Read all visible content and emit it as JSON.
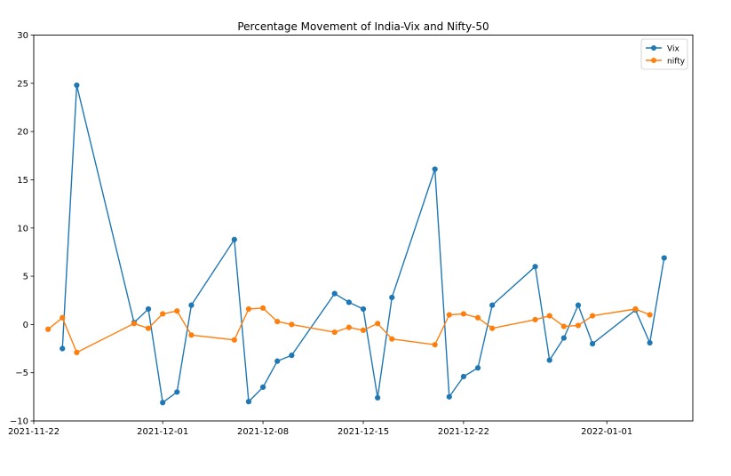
{
  "chart_data": {
    "type": "line",
    "title": "Percentage Movement of India-Vix and Nifty-50",
    "xlabel": "",
    "ylabel": "",
    "x_axis_type": "date",
    "xlim": [
      "2021-11-22",
      "2022-01-07"
    ],
    "ylim": [
      -10,
      30
    ],
    "x_ticks": [
      "2021-11-22",
      "2021-12-01",
      "2021-12-08",
      "2021-12-15",
      "2021-12-22",
      "2022-01-01"
    ],
    "y_ticks": [
      -10,
      -5,
      0,
      5,
      10,
      15,
      20,
      25,
      30
    ],
    "grid": false,
    "legend_position": "top-right",
    "series": [
      {
        "name": "Vix",
        "color": "#1f77b4",
        "marker": "circle",
        "points": [
          {
            "x": "2021-11-24",
            "y": -2.5
          },
          {
            "x": "2021-11-25",
            "y": 24.8
          },
          {
            "x": "2021-11-29",
            "y": 0.2
          },
          {
            "x": "2021-11-30",
            "y": 1.6
          },
          {
            "x": "2021-12-01",
            "y": -8.1
          },
          {
            "x": "2021-12-02",
            "y": -7.0
          },
          {
            "x": "2021-12-03",
            "y": 2.0
          },
          {
            "x": "2021-12-06",
            "y": 8.8
          },
          {
            "x": "2021-12-07",
            "y": -8.0
          },
          {
            "x": "2021-12-08",
            "y": -6.5
          },
          {
            "x": "2021-12-09",
            "y": -3.8
          },
          {
            "x": "2021-12-10",
            "y": -3.2
          },
          {
            "x": "2021-12-13",
            "y": 3.2
          },
          {
            "x": "2021-12-14",
            "y": 2.3
          },
          {
            "x": "2021-12-15",
            "y": 1.6
          },
          {
            "x": "2021-12-16",
            "y": -7.6
          },
          {
            "x": "2021-12-17",
            "y": 2.8
          },
          {
            "x": "2021-12-20",
            "y": 16.1
          },
          {
            "x": "2021-12-21",
            "y": -7.5
          },
          {
            "x": "2021-12-22",
            "y": -5.4
          },
          {
            "x": "2021-12-23",
            "y": -4.5
          },
          {
            "x": "2021-12-24",
            "y": 2.0
          },
          {
            "x": "2021-12-27",
            "y": 6.0
          },
          {
            "x": "2021-12-28",
            "y": -3.7
          },
          {
            "x": "2021-12-29",
            "y": -1.4
          },
          {
            "x": "2021-12-30",
            "y": 2.0
          },
          {
            "x": "2021-12-31",
            "y": -2.0
          },
          {
            "x": "2022-01-03",
            "y": 1.5
          },
          {
            "x": "2022-01-04",
            "y": -1.9
          },
          {
            "x": "2022-01-05",
            "y": 6.9
          }
        ]
      },
      {
        "name": "nifty",
        "color": "#ff7f0e",
        "marker": "circle",
        "points": [
          {
            "x": "2021-11-23",
            "y": -0.5
          },
          {
            "x": "2021-11-24",
            "y": 0.7
          },
          {
            "x": "2021-11-25",
            "y": -2.9
          },
          {
            "x": "2021-11-29",
            "y": 0.1
          },
          {
            "x": "2021-11-30",
            "y": -0.4
          },
          {
            "x": "2021-12-01",
            "y": 1.1
          },
          {
            "x": "2021-12-02",
            "y": 1.4
          },
          {
            "x": "2021-12-03",
            "y": -1.1
          },
          {
            "x": "2021-12-06",
            "y": -1.6
          },
          {
            "x": "2021-12-07",
            "y": 1.6
          },
          {
            "x": "2021-12-08",
            "y": 1.7
          },
          {
            "x": "2021-12-09",
            "y": 0.3
          },
          {
            "x": "2021-12-10",
            "y": 0.0
          },
          {
            "x": "2021-12-13",
            "y": -0.8
          },
          {
            "x": "2021-12-14",
            "y": -0.3
          },
          {
            "x": "2021-12-15",
            "y": -0.6
          },
          {
            "x": "2021-12-16",
            "y": 0.1
          },
          {
            "x": "2021-12-17",
            "y": -1.5
          },
          {
            "x": "2021-12-20",
            "y": -2.1
          },
          {
            "x": "2021-12-21",
            "y": 1.0
          },
          {
            "x": "2021-12-22",
            "y": 1.1
          },
          {
            "x": "2021-12-23",
            "y": 0.7
          },
          {
            "x": "2021-12-24",
            "y": -0.4
          },
          {
            "x": "2021-12-27",
            "y": 0.5
          },
          {
            "x": "2021-12-28",
            "y": 0.9
          },
          {
            "x": "2021-12-29",
            "y": -0.2
          },
          {
            "x": "2021-12-30",
            "y": -0.1
          },
          {
            "x": "2021-12-31",
            "y": 0.9
          },
          {
            "x": "2022-01-03",
            "y": 1.6
          },
          {
            "x": "2022-01-04",
            "y": 1.0
          }
        ]
      }
    ]
  }
}
